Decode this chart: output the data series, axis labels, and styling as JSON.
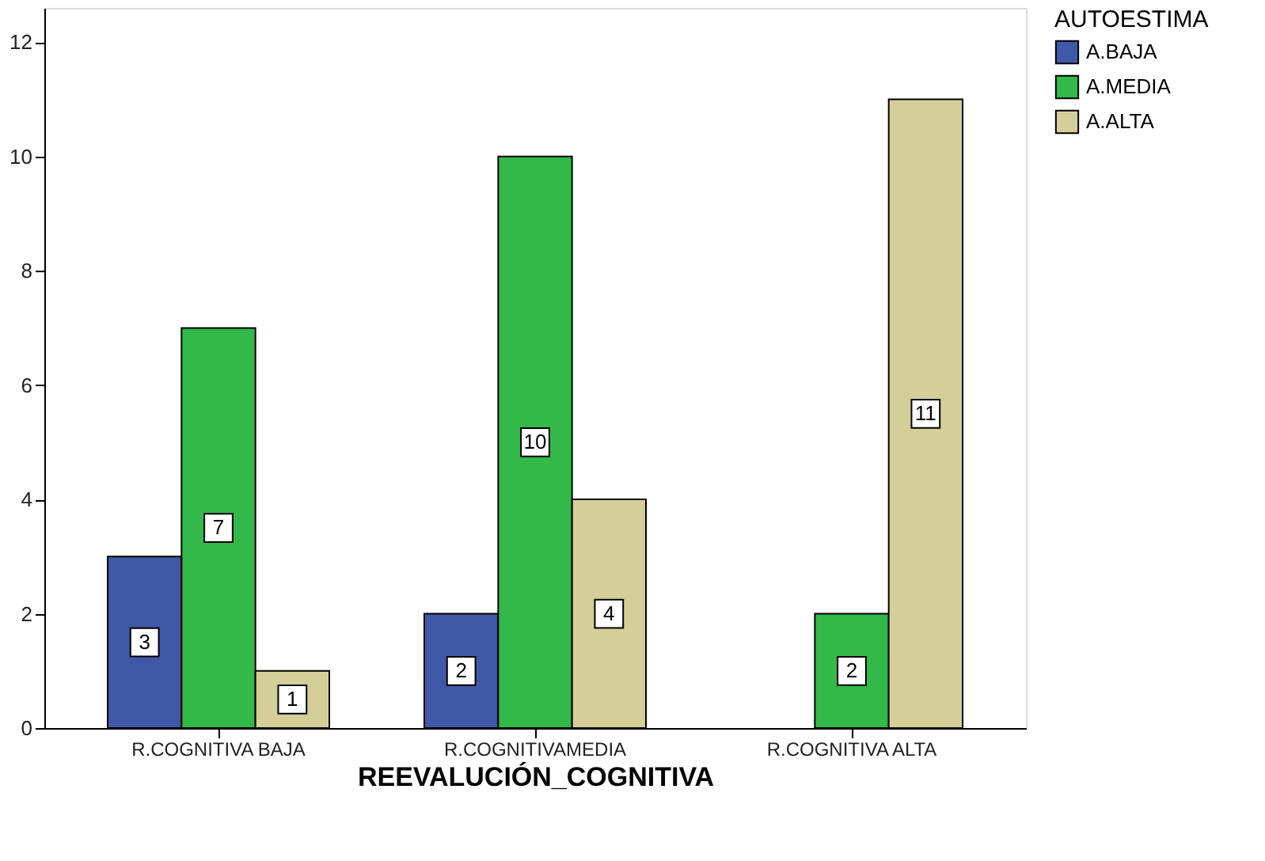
{
  "chart_data": {
    "type": "bar",
    "xlabel": "REEVALUCIÓN_COGNITIVA",
    "legend_title": "AUTOESTIMA",
    "categories": [
      "R.COGNITIVA BAJA",
      "R.COGNITIVAMEDIA",
      "R.COGNITIVA ALTA"
    ],
    "series": [
      {
        "name": "A.BAJA",
        "color": "#3f58a8",
        "values": [
          3,
          2,
          null
        ]
      },
      {
        "name": "A.MEDIA",
        "color": "#33b84a",
        "values": [
          7,
          10,
          2
        ]
      },
      {
        "name": "A.ALTA",
        "color": "#d4cf98",
        "values": [
          1,
          4,
          11
        ]
      }
    ],
    "ylim": [
      0,
      12.6
    ],
    "yticks": [
      0,
      2,
      4,
      6,
      8,
      10,
      12
    ],
    "grid": false,
    "legend": "top right",
    "data_labels": true
  }
}
